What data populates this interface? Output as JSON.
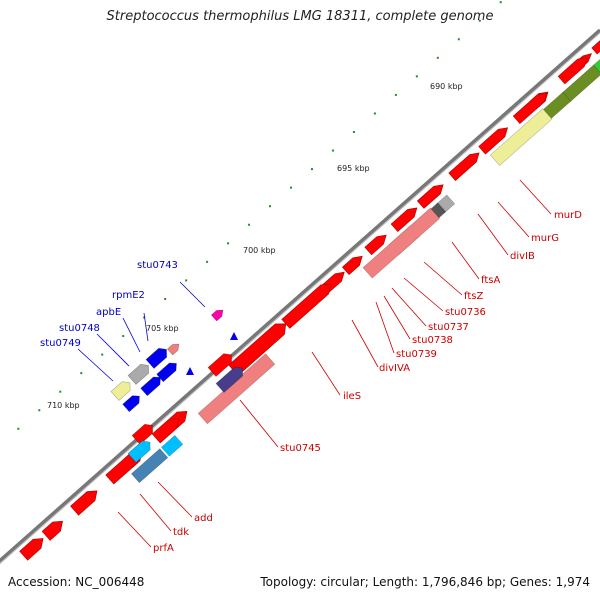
{
  "title": "Streptococcus thermophilus LMG 18311, complete genome",
  "footer": {
    "accession": "Accession: NC_006448",
    "summary": "Topology: circular; Length: 1,796,846 bp; Genes: 1,974"
  },
  "scale_labels": [
    "690 kbp",
    "695 kbp",
    "700 kbp",
    "705 kbp",
    "710 kbp"
  ],
  "colors": {
    "backbone": "#888888",
    "tick": "#2a8a2a",
    "label_forward": "#0000cc",
    "label_reverse": "#cc0000",
    "red": "#ff0000",
    "pink": "#f08080",
    "khaki": "#eeee99",
    "olive": "#6b8e23",
    "green": "#33cc33",
    "blue": "#0000ee",
    "navy": "#483d8b",
    "cyan": "#00bfff",
    "steel": "#4682b4",
    "grey": "#aaaaaa",
    "dark": "#555555",
    "magenta": "#ff00aa"
  },
  "labels": {
    "forward": [
      "stu0743",
      "rpmE2",
      "apbE",
      "stu0748",
      "stu0749"
    ],
    "reverse": [
      "murD",
      "murG",
      "divIB",
      "ftsA",
      "ftsZ",
      "stu0736",
      "stu0737",
      "stu0738",
      "stu0739",
      "divIVA",
      "ileS",
      "stu0745",
      "add",
      "tdk",
      "prfA"
    ]
  }
}
